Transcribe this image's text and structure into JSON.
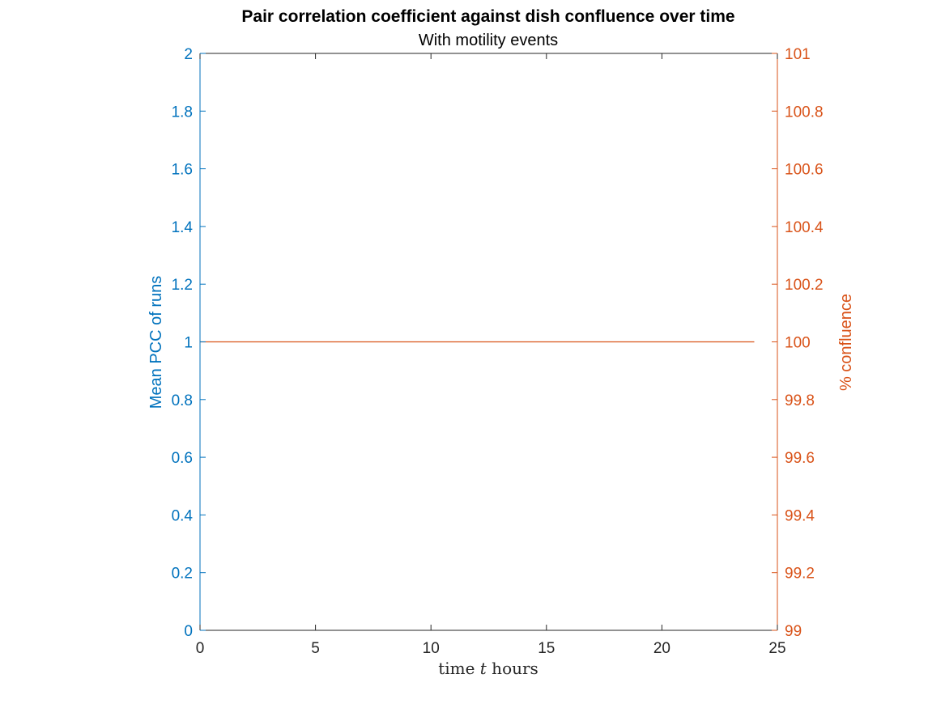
{
  "chart_data": {
    "type": "line",
    "title": "Pair correlation coefficient against dish confluence over time",
    "subtitle": "With motility events",
    "xlabel": {
      "prefix": "time ",
      "variable": "t",
      "suffix": " hours"
    },
    "ylabel_left": "Mean PCC of runs",
    "ylabel_right": "% confluence",
    "xlim": [
      0,
      25
    ],
    "ylim_left": [
      0,
      2
    ],
    "ylim_right": [
      99,
      101
    ],
    "x_ticks": [
      0,
      5,
      10,
      15,
      20,
      25
    ],
    "y_ticks_left": [
      0,
      0.2,
      0.4,
      0.6,
      0.8,
      1,
      1.2,
      1.4,
      1.6,
      1.8,
      2
    ],
    "y_ticks_right": [
      99,
      99.2,
      99.4,
      99.6,
      99.8,
      100,
      100.2,
      100.4,
      100.6,
      100.8,
      101
    ],
    "grid": false,
    "colors": {
      "left_axis": "#0072BD",
      "right_axis": "#D95319",
      "axis": "#262626"
    },
    "series": [
      {
        "axis": "right",
        "color": "#D95319",
        "x": [
          0,
          24
        ],
        "y": [
          100,
          100
        ]
      }
    ]
  }
}
